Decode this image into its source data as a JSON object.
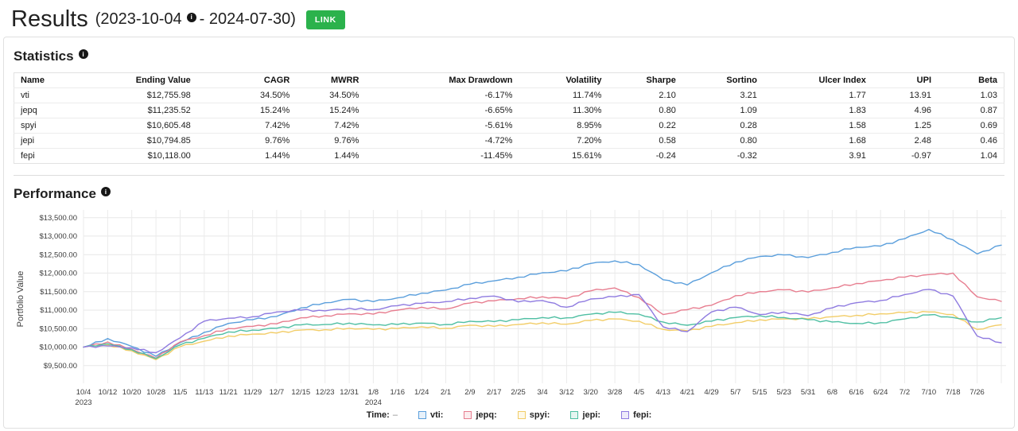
{
  "icons": {
    "info": "i"
  },
  "header": {
    "title": "Results",
    "date_start": "(2023-10-04",
    "date_end": "- 2024-07-30)",
    "link_button": "LINK",
    "accent_green": "#2BB24C"
  },
  "statistics": {
    "title": "Statistics",
    "columns": [
      "Name",
      "Ending Value",
      "CAGR",
      "MWRR",
      "Max Drawdown",
      "Volatility",
      "Sharpe",
      "Sortino",
      "Ulcer Index",
      "UPI",
      "Beta"
    ],
    "rows": [
      [
        "vti",
        "$12,755.98",
        "34.50%",
        "34.50%",
        "-6.17%",
        "11.74%",
        "2.10",
        "3.21",
        "1.77",
        "13.91",
        "1.03"
      ],
      [
        "jepq",
        "$11,235.52",
        "15.24%",
        "15.24%",
        "-6.65%",
        "11.30%",
        "0.80",
        "1.09",
        "1.83",
        "4.96",
        "0.87"
      ],
      [
        "spyi",
        "$10,605.48",
        "7.42%",
        "7.42%",
        "-5.61%",
        "8.95%",
        "0.22",
        "0.28",
        "1.58",
        "1.25",
        "0.69"
      ],
      [
        "jepi",
        "$10,794.85",
        "9.76%",
        "9.76%",
        "-4.72%",
        "7.20%",
        "0.58",
        "0.80",
        "1.68",
        "2.48",
        "0.46"
      ],
      [
        "fepi",
        "$10,118.00",
        "1.44%",
        "1.44%",
        "-11.45%",
        "15.61%",
        "-0.24",
        "-0.32",
        "3.91",
        "-0.97",
        "1.04"
      ]
    ]
  },
  "performance": {
    "title": "Performance",
    "legend_time_label": "Time:",
    "legend_time_value": "–"
  },
  "chart_data": {
    "type": "line",
    "title": "Performance",
    "xlabel": "",
    "ylabel": "Portfolio Value",
    "ylim": [
      9500,
      13500
    ],
    "grid": true,
    "legend_position": "bottom",
    "y_ticks": [
      13500,
      13000,
      12500,
      12000,
      11500,
      11000,
      10500,
      10000,
      9500
    ],
    "y_tick_labels": [
      "$13,500.00",
      "$13,000.00",
      "$12,500.00",
      "$12,000.00",
      "$11,500.00",
      "$11,000.00",
      "$10,500.00",
      "$10,000.00",
      "$9,500.00"
    ],
    "x_ticks": [
      "10/4",
      "10/12",
      "10/20",
      "10/28",
      "11/5",
      "11/13",
      "11/21",
      "11/29",
      "12/7",
      "12/15",
      "12/23",
      "12/31",
      "1/8",
      "1/16",
      "1/24",
      "2/1",
      "2/9",
      "2/17",
      "2/25",
      "3/4",
      "3/12",
      "3/20",
      "3/28",
      "4/5",
      "4/13",
      "4/21",
      "4/29",
      "5/7",
      "5/15",
      "5/23",
      "5/31",
      "6/8",
      "6/16",
      "6/24",
      "7/2",
      "7/10",
      "7/18",
      "7/26"
    ],
    "x_year_marks": [
      {
        "index": 0,
        "label": "2023"
      },
      {
        "index": 12,
        "label": "2024"
      }
    ],
    "end_date": "7/30",
    "series": [
      {
        "name": "vti",
        "legend_label": "vti:",
        "color": "#5B9FDC",
        "values": [
          10000,
          10230,
          10020,
          9750,
          10120,
          10400,
          10640,
          10740,
          10830,
          11060,
          11200,
          11290,
          11230,
          11330,
          11460,
          11540,
          11700,
          11790,
          11890,
          12010,
          12060,
          12260,
          12330,
          12230,
          11820,
          11680,
          12010,
          12300,
          12450,
          12490,
          12420,
          12560,
          12700,
          12730,
          12930,
          13180,
          12900,
          12520,
          12756
        ]
      },
      {
        "name": "jepq",
        "legend_label": "jepq:",
        "color": "#E77D8F",
        "values": [
          10000,
          10140,
          9940,
          9700,
          10140,
          10310,
          10500,
          10560,
          10630,
          10790,
          10850,
          10900,
          10890,
          11000,
          11080,
          11030,
          11190,
          11250,
          11310,
          11360,
          11310,
          11520,
          11600,
          11340,
          10880,
          11010,
          11130,
          11390,
          11500,
          11550,
          11490,
          11600,
          11720,
          11800,
          11890,
          11960,
          12000,
          11360,
          11235
        ]
      },
      {
        "name": "spyi",
        "legend_label": "spyi:",
        "color": "#F2CD68",
        "values": [
          10000,
          10060,
          9900,
          9660,
          10010,
          10160,
          10300,
          10350,
          10380,
          10460,
          10470,
          10510,
          10480,
          10500,
          10550,
          10510,
          10590,
          10560,
          10610,
          10660,
          10620,
          10720,
          10760,
          10700,
          10480,
          10440,
          10560,
          10660,
          10740,
          10760,
          10760,
          10820,
          10860,
          10900,
          10930,
          10950,
          10880,
          10480,
          10605
        ]
      },
      {
        "name": "jepi",
        "legend_label": "jepi:",
        "color": "#4FBFA3",
        "values": [
          10000,
          10090,
          9930,
          9690,
          10060,
          10240,
          10410,
          10460,
          10510,
          10600,
          10610,
          10650,
          10600,
          10610,
          10650,
          10610,
          10700,
          10690,
          10740,
          10800,
          10790,
          10890,
          10940,
          10890,
          10680,
          10590,
          10700,
          10800,
          10850,
          10800,
          10740,
          10680,
          10640,
          10660,
          10760,
          10870,
          10800,
          10680,
          10795
        ]
      },
      {
        "name": "fepi",
        "legend_label": "fepi:",
        "color": "#8F7BE0",
        "values": [
          10000,
          10030,
          9980,
          9850,
          10250,
          10700,
          10780,
          10820,
          10950,
          11000,
          10980,
          11050,
          11010,
          11120,
          11180,
          11230,
          11320,
          11380,
          11220,
          11260,
          11080,
          11300,
          11360,
          11420,
          10550,
          10420,
          10950,
          11080,
          10880,
          10950,
          10850,
          11060,
          11200,
          11260,
          11420,
          11560,
          11380,
          10300,
          10118
        ]
      }
    ]
  }
}
